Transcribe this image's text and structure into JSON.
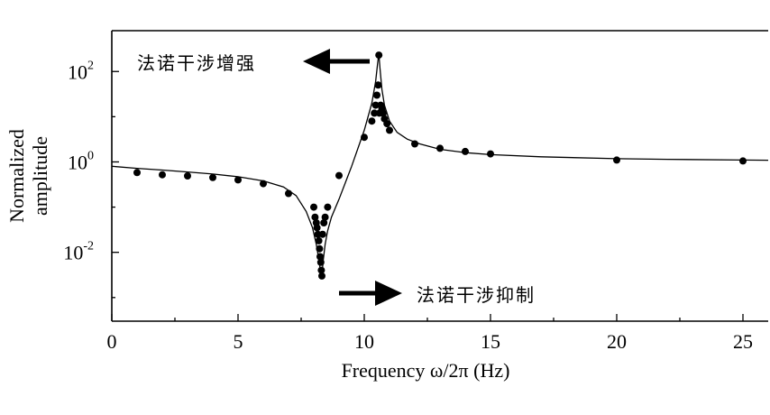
{
  "chart_data": {
    "type": "line",
    "title": "",
    "xlabel": "Frequency ω/2π (Hz)",
    "ylabel": "Normalized amplitude",
    "ylabel_lines": [
      "Normalized",
      "amplitude"
    ],
    "xscale": "linear",
    "yscale": "log",
    "xlim": [
      0,
      26
    ],
    "ylim": [
      0.0003,
      800
    ],
    "x_ticks": [
      0,
      5,
      10,
      15,
      20,
      25
    ],
    "x_tick_labels": [
      "0",
      "5",
      "10",
      "15",
      "20",
      "25"
    ],
    "y_ticks": [
      0.01,
      1,
      100
    ],
    "y_tick_labels": [
      {
        "base": "10",
        "exp": "-2"
      },
      {
        "base": "10",
        "exp": "0"
      },
      {
        "base": "10",
        "exp": "2"
      }
    ],
    "grid": false,
    "legend": "none",
    "series": [
      {
        "style": "curve",
        "color": "#000000",
        "x": [
          0,
          1,
          2,
          3,
          4,
          5,
          6,
          6.8,
          7.3,
          7.7,
          7.95,
          8.1,
          8.2,
          8.26,
          8.3,
          8.34,
          8.38,
          8.45,
          8.55,
          8.7,
          9.0,
          9.5,
          10.0,
          10.3,
          10.45,
          10.53,
          10.58,
          10.62,
          10.7,
          10.8,
          11.0,
          11.3,
          11.7,
          12.2,
          13,
          14,
          15,
          17,
          20,
          22,
          25,
          26
        ],
        "y": [
          0.8,
          0.72,
          0.66,
          0.6,
          0.54,
          0.47,
          0.38,
          0.28,
          0.18,
          0.08,
          0.035,
          0.015,
          0.007,
          0.004,
          0.0035,
          0.004,
          0.007,
          0.015,
          0.03,
          0.06,
          0.15,
          0.8,
          5,
          20,
          60,
          150,
          250,
          120,
          40,
          18,
          8,
          4.5,
          3.2,
          2.5,
          1.9,
          1.6,
          1.45,
          1.3,
          1.18,
          1.14,
          1.1,
          1.09
        ]
      },
      {
        "style": "markers",
        "color": "#000000",
        "x": [
          1,
          2,
          3,
          4,
          5,
          6,
          7,
          8.0,
          8.05,
          8.1,
          8.13,
          8.16,
          8.2,
          8.23,
          8.25,
          8.28,
          8.3,
          8.32,
          8.35,
          8.4,
          8.45,
          8.55,
          9.0,
          10.0,
          10.3,
          10.4,
          10.45,
          10.5,
          10.55,
          10.58,
          10.6,
          10.65,
          10.7,
          10.75,
          10.8,
          10.9,
          11.0,
          12.0,
          13.0,
          14.0,
          15.0,
          20.0,
          25.0
        ],
        "y": [
          0.58,
          0.52,
          0.49,
          0.45,
          0.4,
          0.33,
          0.2,
          0.1,
          0.06,
          0.045,
          0.035,
          0.025,
          0.018,
          0.012,
          0.008,
          0.006,
          0.004,
          0.003,
          0.025,
          0.045,
          0.06,
          0.1,
          0.5,
          3.5,
          8,
          12,
          18,
          30,
          50,
          230,
          12,
          18,
          15,
          12,
          9,
          7,
          5,
          2.5,
          2,
          1.7,
          1.5,
          1.1,
          1.05
        ]
      }
    ],
    "annotations": [
      {
        "text": "法诺干涉增强",
        "arrow": "left",
        "target_x": 10.58,
        "target_y": 250
      },
      {
        "text": "法诺干涉抑制",
        "arrow": "right",
        "target_x": 8.3,
        "target_y": 0.004
      }
    ]
  }
}
